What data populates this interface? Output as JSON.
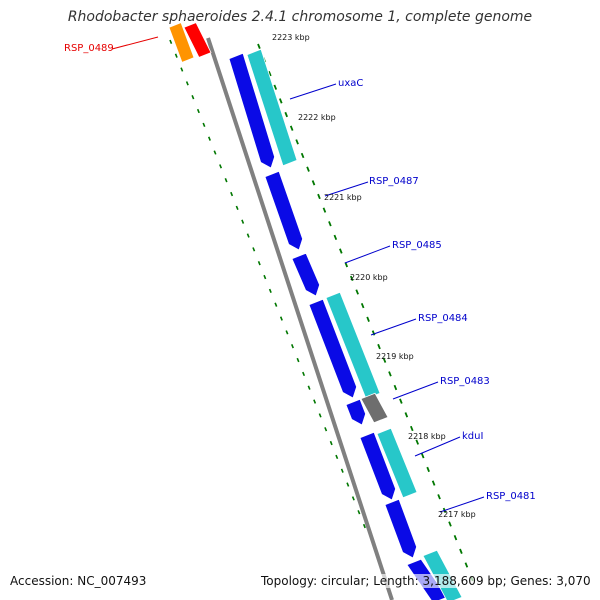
{
  "title": "Rhodobacter sphaeroides 2.4.1 chromosome 1, complete genome",
  "footer": {
    "accession": "Accession: NC_007493",
    "stats": "Topology: circular; Length: 3,188,609 bp; Genes: 3,070"
  },
  "colors": {
    "highlight_label": "#e60000",
    "gene_label": "#0000cc",
    "tick": "#007700",
    "backbone": "#808080",
    "gene_blue": "#0a0ae6",
    "gene_cyan": "#27c7c9",
    "gene_gray": "#6e6e6e",
    "gene_orange": "#ff9400",
    "gene_red": "#ff0000"
  },
  "ticks": [
    {
      "label": "2223 kbp"
    },
    {
      "label": "2222 kbp"
    },
    {
      "label": "2221 kbp"
    },
    {
      "label": "2220 kbp"
    },
    {
      "label": "2219 kbp"
    },
    {
      "label": "2218 kbp"
    },
    {
      "label": "2217 kbp"
    }
  ],
  "gene_labels": [
    {
      "name": "RSP_0489",
      "highlight": true
    },
    {
      "name": "uxaC",
      "highlight": false
    },
    {
      "name": "RSP_0487",
      "highlight": false
    },
    {
      "name": "RSP_0485",
      "highlight": false
    },
    {
      "name": "RSP_0484",
      "highlight": false
    },
    {
      "name": "RSP_0483",
      "highlight": false
    },
    {
      "name": "kduI",
      "highlight": false
    },
    {
      "name": "RSP_0481",
      "highlight": false
    }
  ],
  "features": [
    {
      "track": "left",
      "color": "orange"
    },
    {
      "track": "inner",
      "color": "red"
    },
    {
      "track": "inner",
      "color": "blue"
    },
    {
      "track": "outer",
      "color": "cyan"
    },
    {
      "track": "inner",
      "color": "blue"
    },
    {
      "track": "inner",
      "color": "blue"
    },
    {
      "track": "inner",
      "color": "blue"
    },
    {
      "track": "outer",
      "color": "cyan"
    },
    {
      "track": "inner",
      "color": "blue"
    },
    {
      "track": "outer",
      "color": "gray"
    },
    {
      "track": "inner",
      "color": "blue"
    },
    {
      "track": "outer",
      "color": "cyan"
    },
    {
      "track": "inner",
      "color": "blue"
    },
    {
      "track": "inner",
      "color": "blue"
    },
    {
      "track": "outer",
      "color": "cyan"
    }
  ]
}
